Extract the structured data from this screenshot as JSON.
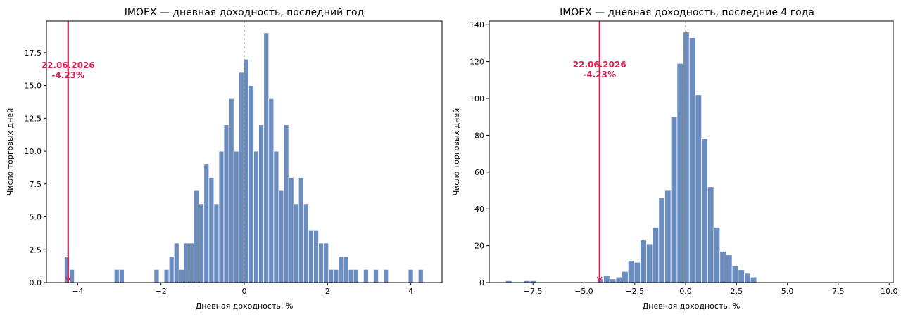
{
  "chart_data": [
    {
      "type": "bar",
      "title": "IMOEX — дневная доходность, последний год",
      "xlabel": "Дневная доходность, %",
      "ylabel": "Число торговых дней",
      "xlim": [
        -4.75,
        4.75
      ],
      "ylim": [
        0,
        19.9
      ],
      "xticks": [
        -4,
        -2,
        0,
        2,
        4
      ],
      "yticks": [
        0.0,
        2.5,
        5.0,
        7.5,
        10.0,
        12.5,
        15.0,
        17.5
      ],
      "x_tick_labels": [
        "−4",
        "−2",
        "0",
        "2",
        "4"
      ],
      "y_tick_labels": [
        "0.0",
        "2.5",
        "5.0",
        "7.5",
        "10.0",
        "12.5",
        "15.0",
        "17.5"
      ],
      "bin_start": -4.32,
      "bin_width": 0.1197,
      "counts": [
        2,
        1,
        0,
        0,
        0,
        0,
        0,
        0,
        0,
        0,
        1,
        1,
        0,
        0,
        0,
        0,
        0,
        0,
        1,
        0,
        1,
        2,
        3,
        1,
        3,
        3,
        7,
        6,
        9,
        8,
        6,
        10,
        12,
        14,
        10,
        16,
        17,
        15,
        10,
        12,
        19,
        14,
        10,
        7,
        12,
        8,
        6,
        8,
        6,
        4,
        4,
        3,
        3,
        1,
        1,
        2,
        2,
        1,
        1,
        0,
        1,
        0,
        1,
        0,
        1,
        0,
        0,
        0,
        0,
        1,
        0,
        1
      ],
      "marker": {
        "x": -4.23,
        "date_label": "22.06.2026",
        "value_label": "-4.23%",
        "color": "#d62050"
      },
      "median_line": 0,
      "bar_color": "#6b8cbf"
    },
    {
      "type": "bar",
      "title": "IMOEX — дневная доходность, последние 4 года",
      "xlabel": "Дневная доходность, %",
      "ylabel": "Число торговых дней",
      "xlim": [
        -9.65,
        10.2
      ],
      "ylim": [
        0,
        142
      ],
      "xticks": [
        -7.5,
        -5.0,
        -2.5,
        0,
        2.5,
        5.0,
        7.5,
        10.0
      ],
      "yticks": [
        0,
        20,
        40,
        60,
        80,
        100,
        120,
        140
      ],
      "x_tick_labels": [
        "−7.5",
        "−5.0",
        "−2.5",
        "0.0",
        "2.5",
        "5.0",
        "7.5",
        "10.0"
      ],
      "y_tick_labels": [
        "0",
        "20",
        "40",
        "60",
        "80",
        "100",
        "120",
        "140"
      ],
      "bin_start": -8.84,
      "bin_width": 0.3007,
      "counts": [
        1,
        0,
        0,
        1,
        1,
        0,
        0,
        0,
        0,
        0,
        0,
        0,
        0,
        0,
        0,
        2,
        4,
        2,
        3,
        6,
        12,
        11,
        23,
        21,
        30,
        46,
        50,
        90,
        119,
        136,
        133,
        102,
        78,
        52,
        30,
        17,
        15,
        9,
        7,
        5,
        3,
        0,
        0,
        0,
        0,
        0,
        0,
        0,
        0,
        0,
        0,
        0,
        0,
        0,
        0,
        0,
        0,
        0,
        0,
        0,
        0,
        0,
        0,
        0,
        0,
        1
      ],
      "marker": {
        "x": -4.23,
        "date_label": "22.06.2026",
        "value_label": "-4.23%",
        "color": "#d62050"
      },
      "median_line": 0,
      "bar_color": "#6b8cbf"
    }
  ]
}
